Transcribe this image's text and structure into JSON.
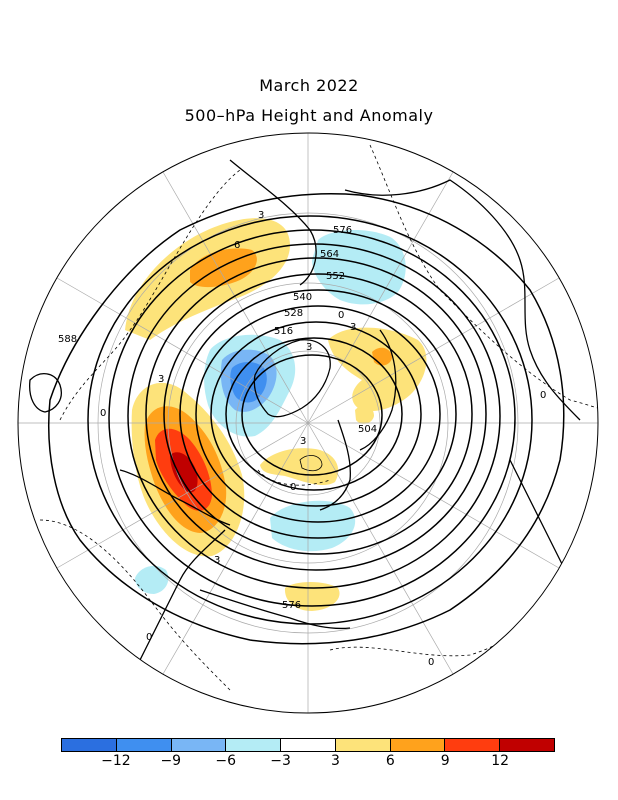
{
  "title": {
    "line1": "March 2022",
    "line2": "500–hPa Height and Anomaly"
  },
  "legend": {
    "colors": [
      "#2b6fe0",
      "#3f8ff0",
      "#79b6f5",
      "#b4ecf5",
      "#ffffff",
      "#fde37a",
      "#ffa21c",
      "#ff3d0f",
      "#c00000"
    ],
    "tick_labels": [
      "−12",
      "−9",
      "−6",
      "−3",
      "3",
      "6",
      "9",
      "12"
    ]
  },
  "map": {
    "height_contour_labels": [
      "588",
      "576",
      "564",
      "552",
      "540",
      "528",
      "516",
      "504",
      "576"
    ],
    "anomaly_contour_labels": [
      "3",
      "6",
      "0",
      "3",
      "3",
      "0",
      "0",
      "0",
      "3",
      "3",
      "3",
      "0",
      "0"
    ]
  }
}
